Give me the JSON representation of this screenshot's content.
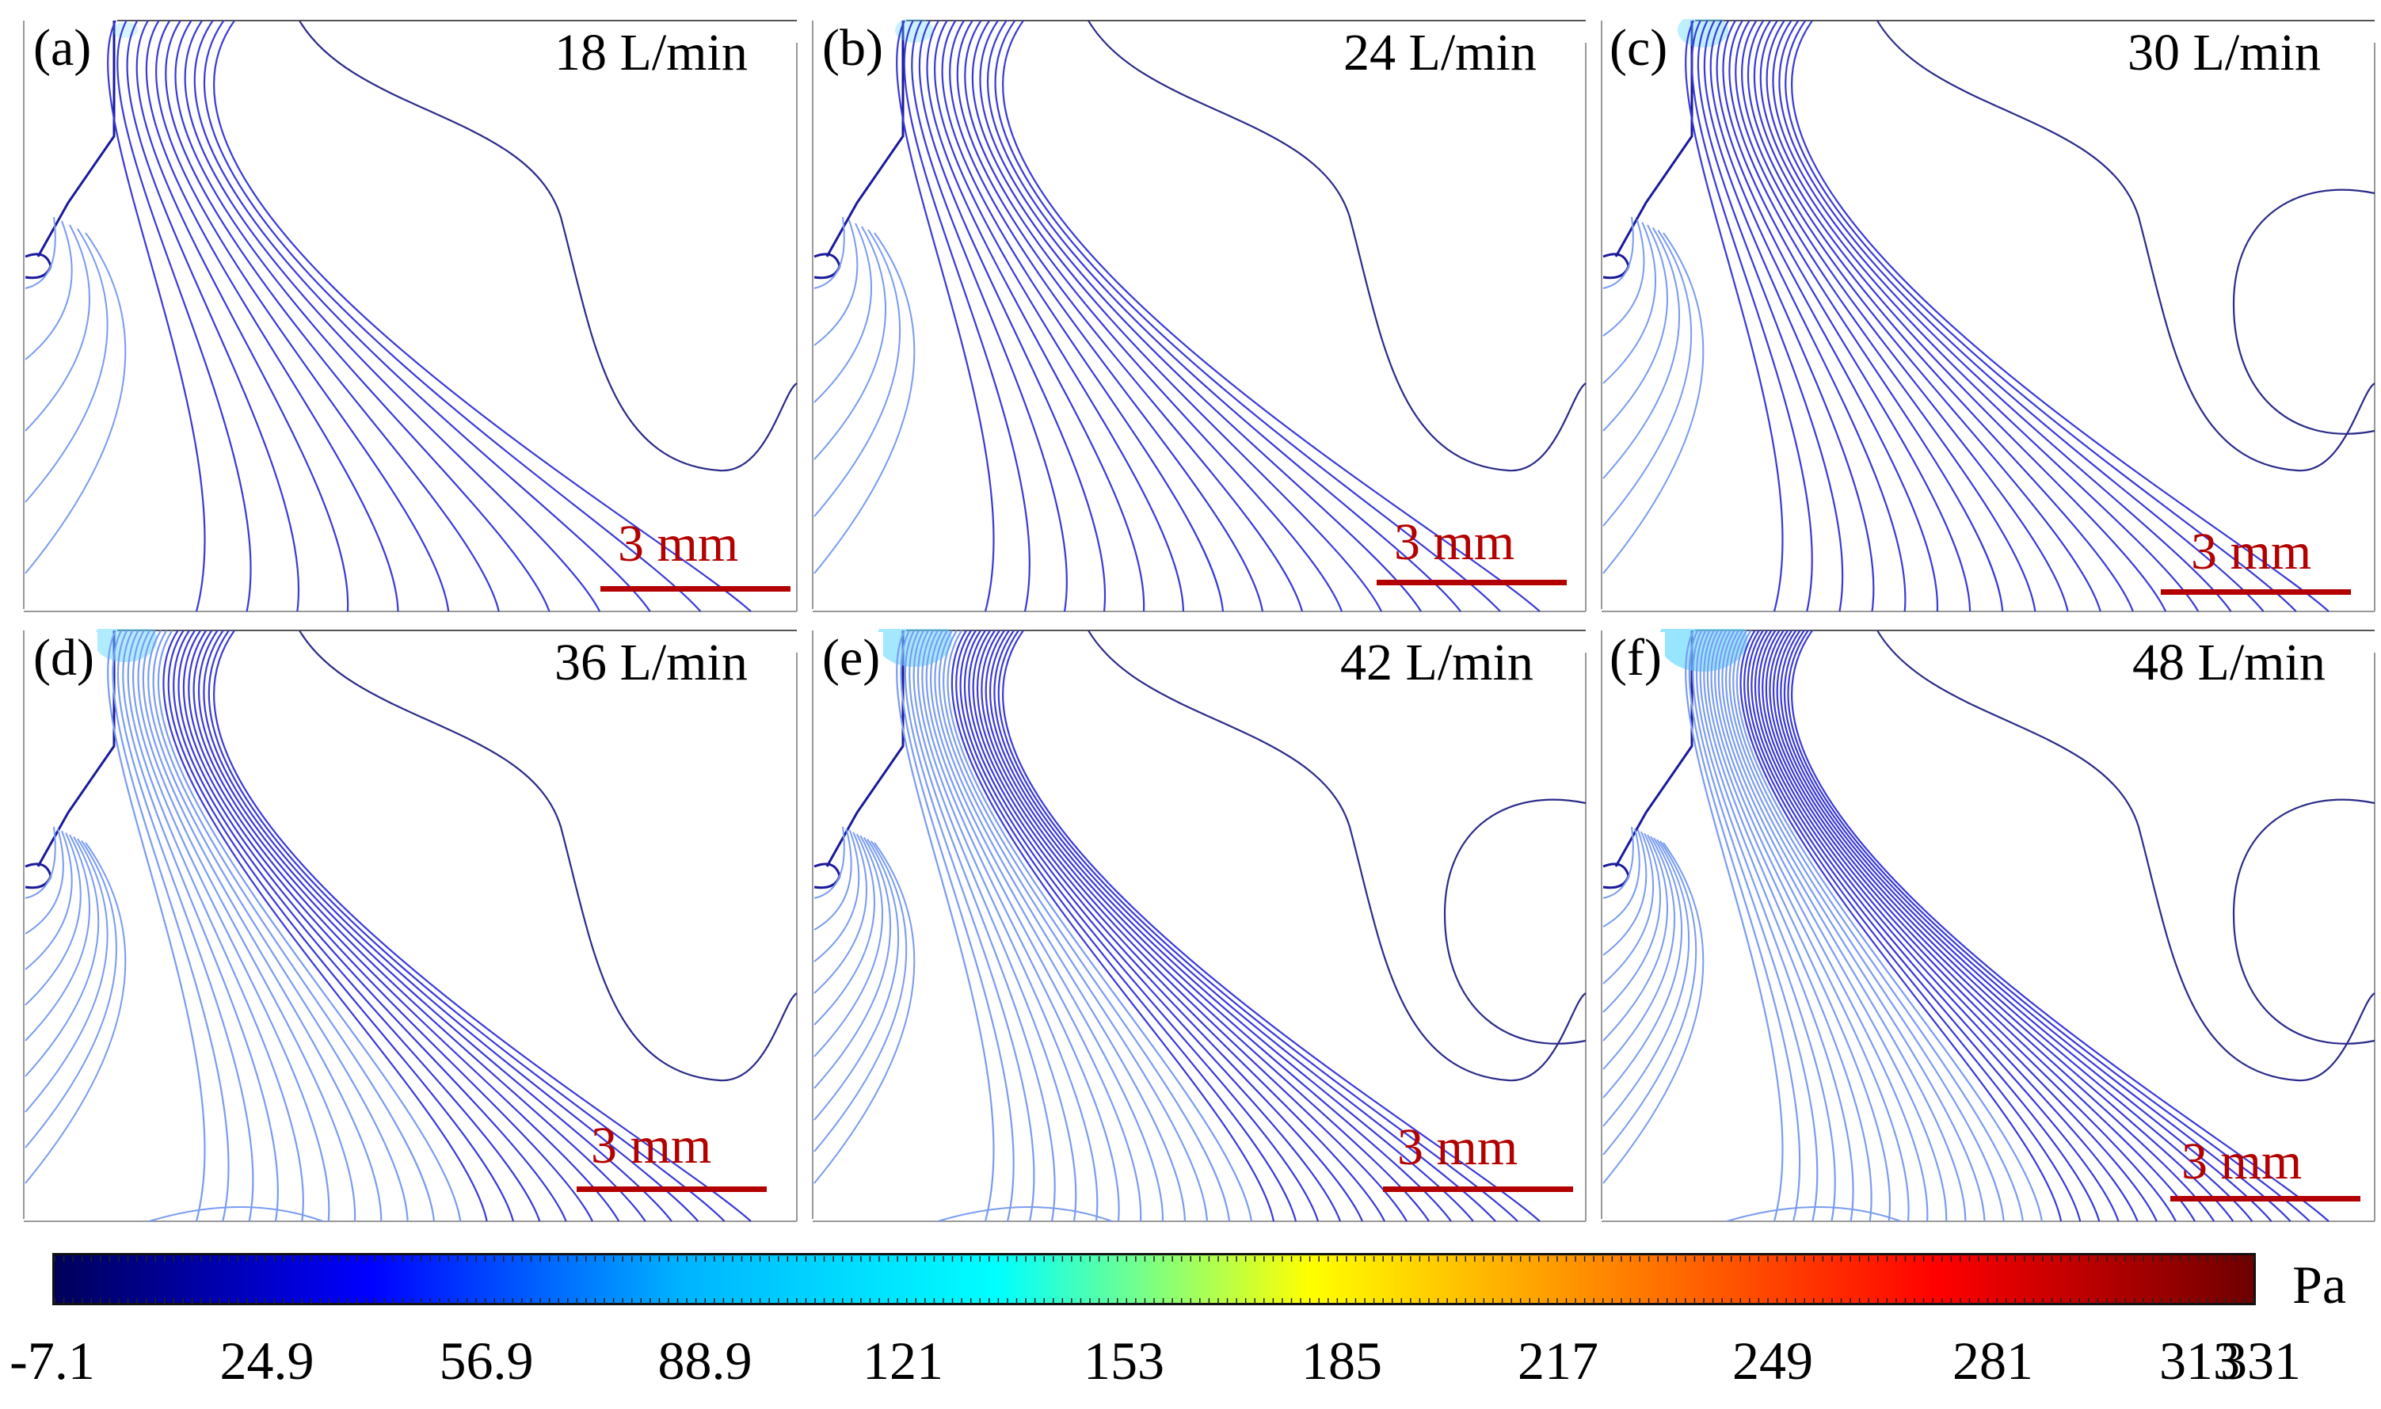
{
  "panels": [
    {
      "label": "(a)",
      "flow": "18 L/min",
      "scale": "3 mm",
      "n_lines": 12
    },
    {
      "label": "(b)",
      "flow": "24 L/min",
      "scale": "3 mm",
      "n_lines": 15
    },
    {
      "label": "(c)",
      "flow": "30 L/min",
      "scale": "3 mm",
      "n_lines": 18
    },
    {
      "label": "(d)",
      "flow": "36 L/min",
      "scale": "3 mm",
      "n_lines": 22
    },
    {
      "label": "(e)",
      "flow": "42 L/min",
      "scale": "3 mm",
      "n_lines": 26
    },
    {
      "label": "(f)",
      "flow": "48 L/min",
      "scale": "3 mm",
      "n_lines": 30
    }
  ],
  "colorbar": {
    "unit": "Pa",
    "tick_labels": [
      "-7.1",
      "24.9",
      "56.9",
      "88.9",
      "121",
      "153",
      "185",
      "217",
      "249",
      "281",
      "313",
      "331"
    ],
    "min": -7.1,
    "max": 331,
    "colors": [
      "#00005a",
      "#0000ff",
      "#00b4ff",
      "#00ffff",
      "#ffff00",
      "#ff7f00",
      "#ff0000",
      "#6e0000"
    ]
  },
  "colors": {
    "contour": "#3a3ad6",
    "contour_light": "#7a9cf0",
    "scale_bar": "#b30000"
  }
}
